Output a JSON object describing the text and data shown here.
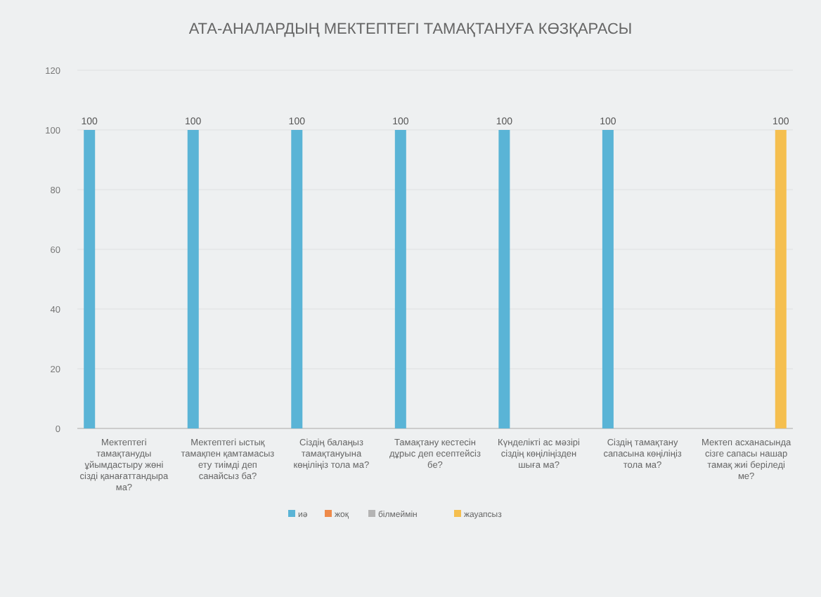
{
  "chart_data": {
    "type": "bar",
    "title": "АТА-АНАЛАРДЫҢ МЕКТЕПТЕГІ ТАМАҚТАНУҒА КӨЗҚАРАСЫ",
    "categories": [
      "Мектептегі тамақтануды ұйымдастыру жөні сізді қанағаттандыра ма?",
      "Мектептегі ыстық тамақпен қамтамасыз ету тиімді деп санайсыз ба?",
      "Сіздің балаңыз тамақтануына көңіліңіз тола ма?",
      "Тамақтану кестесін дұрыс деп есептейсіз бе?",
      "Күнделікті ас мәзірі сіздің көңіліңізден шыға ма?",
      "Сіздің тамақтану сапасына көңіліңіз тола ма?",
      "Мектеп асханасында сізге сапасы нашар тамақ жиі беріледі ме?"
    ],
    "series": [
      {
        "name": "иә",
        "color": "#5ab4d6",
        "values": [
          100,
          100,
          100,
          100,
          100,
          100,
          null
        ]
      },
      {
        "name": "жоқ",
        "color": "#ee8a4a",
        "values": [
          null,
          null,
          null,
          null,
          null,
          null,
          null
        ]
      },
      {
        "name": "білмеймін",
        "color": "#b4b4b4",
        "values": [
          null,
          null,
          null,
          null,
          null,
          null,
          null
        ]
      },
      {
        "name": "жауапсыз",
        "color": "#f5bf4f",
        "values": [
          null,
          null,
          null,
          null,
          null,
          null,
          100
        ]
      }
    ],
    "ylim": [
      0,
      120
    ],
    "yticks": [
      0,
      20,
      40,
      60,
      80,
      100,
      120
    ],
    "grid": "y",
    "legend": "bottom",
    "data_labels": true
  }
}
